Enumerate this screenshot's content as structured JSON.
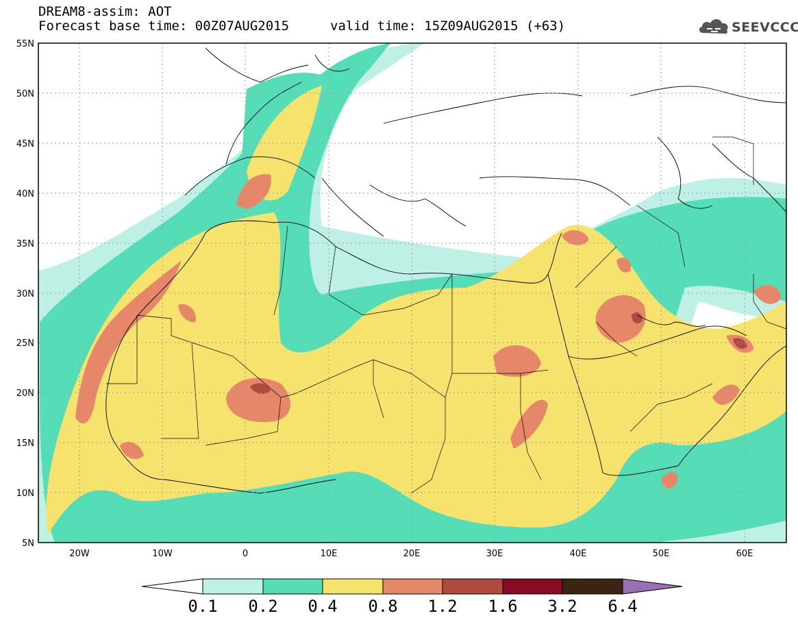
{
  "header": {
    "title": "DREAM8-assim: AOT",
    "base_time": "Forecast base time: 00Z07AUG2015",
    "valid_time": "valid time: 15Z09AUG2015 (+63)"
  },
  "logo": {
    "text": "SEEVCCC",
    "icon": "cloud-icon"
  },
  "map": {
    "lat_labels": [
      "55N",
      "50N",
      "45N",
      "40N",
      "35N",
      "30N",
      "25N",
      "20N",
      "15N",
      "10N",
      "5N"
    ],
    "lon_labels": [
      "20W",
      "10W",
      "0",
      "10E",
      "20E",
      "30E",
      "40E",
      "50E",
      "60E"
    ],
    "extent": {
      "lon": [
        -25,
        65
      ],
      "lat": [
        5,
        55
      ]
    }
  },
  "colorbar": {
    "labels": [
      "0.1",
      "0.2",
      "0.4",
      "0.8",
      "1.2",
      "1.6",
      "3.2",
      "6.4"
    ],
    "colors": [
      "#ffffff",
      "#bff0e6",
      "#55ddb8",
      "#f5e36d",
      "#e6876a",
      "#b04a3e",
      "#8a0a25",
      "#3a2412",
      "#9b6fb3"
    ]
  }
}
